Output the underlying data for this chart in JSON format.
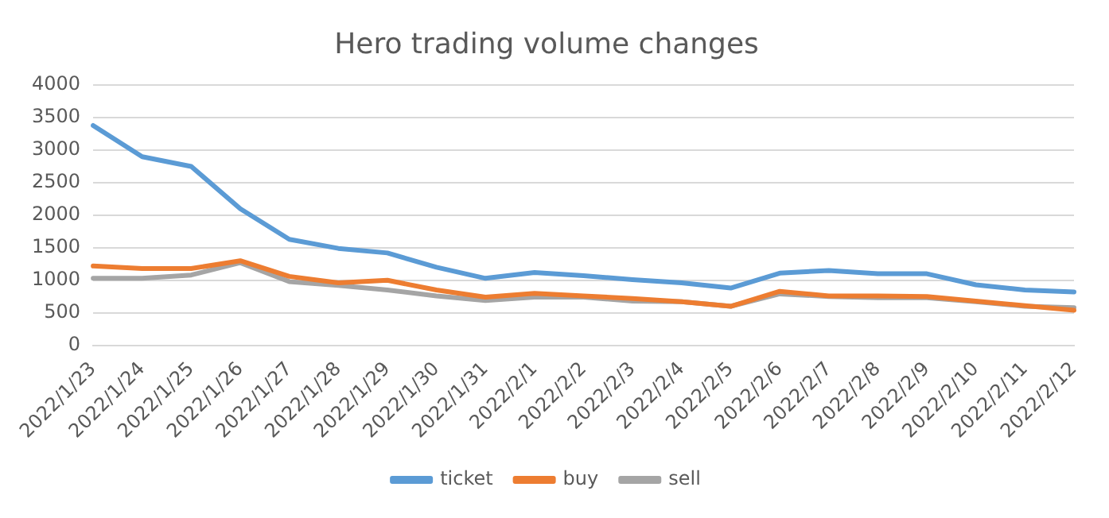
{
  "chart_data": {
    "type": "line",
    "title": "Hero trading volume changes",
    "categories": [
      "2022/1/23",
      "2022/1/24",
      "2022/1/25",
      "2022/1/26",
      "2022/1/27",
      "2022/1/28",
      "2022/1/29",
      "2022/1/30",
      "2022/1/31",
      "2022/2/1",
      "2022/2/2",
      "2022/2/3",
      "2022/2/4",
      "2022/2/5",
      "2022/2/6",
      "2022/2/7",
      "2022/2/8",
      "2022/2/9",
      "2022/2/10",
      "2022/2/11",
      "2022/2/12"
    ],
    "series": [
      {
        "name": "ticket",
        "color": "#5b9bd5",
        "values": [
          3380,
          2900,
          2750,
          2100,
          1630,
          1490,
          1420,
          1200,
          1030,
          1120,
          1070,
          1010,
          960,
          880,
          1110,
          1150,
          1100,
          1100,
          930,
          850,
          820
        ]
      },
      {
        "name": "buy",
        "color": "#ed7d31",
        "values": [
          1220,
          1180,
          1180,
          1300,
          1060,
          960,
          1000,
          850,
          740,
          800,
          760,
          720,
          670,
          600,
          830,
          760,
          760,
          750,
          680,
          610,
          540
        ]
      },
      {
        "name": "sell",
        "color": "#a5a5a5",
        "values": [
          1030,
          1030,
          1080,
          1270,
          980,
          920,
          850,
          760,
          690,
          740,
          740,
          680,
          670,
          600,
          790,
          750,
          730,
          730,
          670,
          600,
          580
        ]
      }
    ],
    "ylim": [
      0,
      4000
    ],
    "yticks": [
      0,
      500,
      1000,
      1500,
      2000,
      2500,
      3000,
      3500,
      4000
    ],
    "grid": "y",
    "legend": "bottom",
    "marker": "none",
    "line_style": "solid"
  }
}
